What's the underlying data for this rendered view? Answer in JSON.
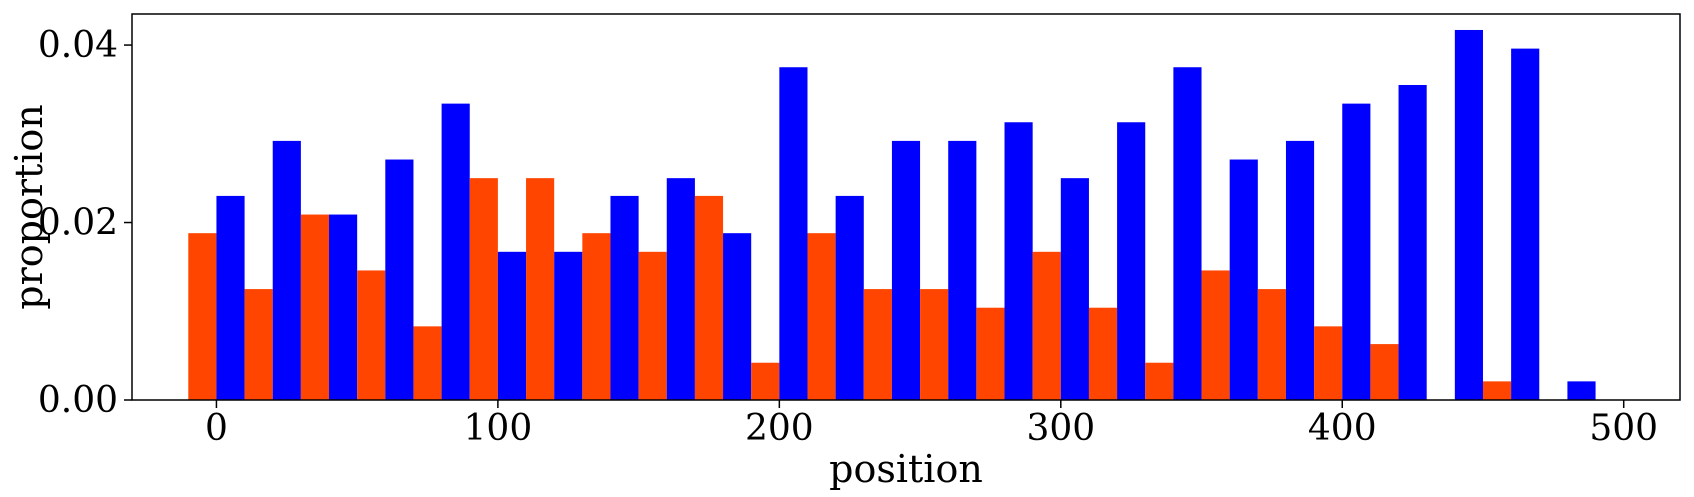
{
  "chart_data": {
    "type": "bar",
    "xlabel": "position",
    "ylabel": "proportion",
    "xlim": [
      -30,
      520
    ],
    "ylim": [
      0,
      0.0435
    ],
    "bin_width": 20,
    "xticks": [
      0,
      100,
      200,
      300,
      400,
      500
    ],
    "yticks": [
      0.0,
      0.02,
      0.04
    ],
    "xtick_labels": [
      "0",
      "100",
      "200",
      "300",
      "400",
      "500"
    ],
    "ytick_labels": [
      "0.00",
      "0.02",
      "0.04"
    ],
    "grid": false,
    "legend": "none",
    "bin_starts": [
      0,
      20,
      40,
      60,
      80,
      100,
      120,
      140,
      160,
      180,
      200,
      220,
      240,
      260,
      280,
      300,
      320,
      340,
      360,
      380,
      400,
      420,
      440,
      460,
      480
    ],
    "series": [
      {
        "color": "#FF4500",
        "values": [
          0.0188,
          0.0125,
          0.0209,
          0.0146,
          0.0083,
          0.025,
          0.025,
          0.0188,
          0.0167,
          0.023,
          0.0042,
          0.0188,
          0.0125,
          0.0125,
          0.0104,
          0.0167,
          0.0104,
          0.0042,
          0.0146,
          0.0125,
          0.0083,
          0.0063,
          0.0,
          0.0021,
          0.0
        ]
      },
      {
        "color": "#0000FF",
        "values": [
          0.023,
          0.0292,
          0.0209,
          0.0271,
          0.0334,
          0.0167,
          0.0167,
          0.023,
          0.025,
          0.0188,
          0.0375,
          0.023,
          0.0292,
          0.0292,
          0.0313,
          0.025,
          0.0313,
          0.0375,
          0.0271,
          0.0292,
          0.0334,
          0.0355,
          0.0417,
          0.0396,
          0.0021
        ]
      }
    ]
  }
}
